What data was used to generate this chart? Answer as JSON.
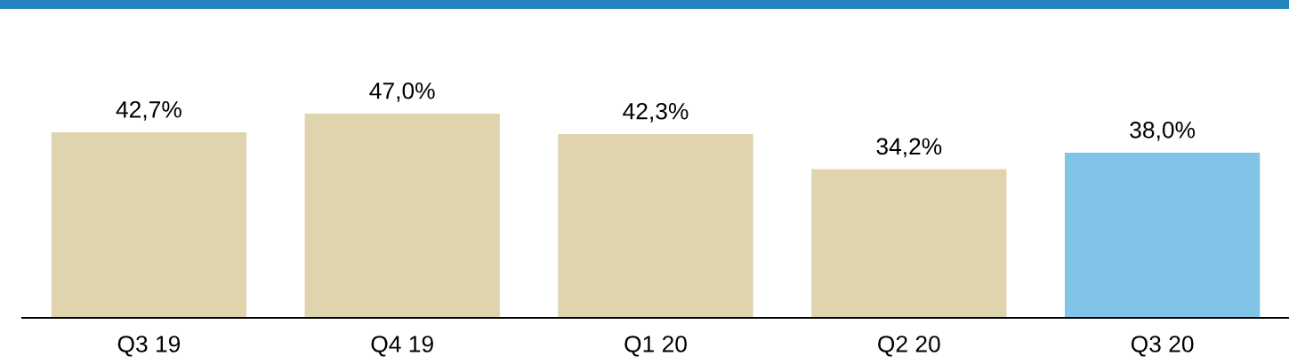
{
  "chart_data": {
    "type": "bar",
    "categories": [
      "Q3 19",
      "Q4 19",
      "Q1 20",
      "Q2 20",
      "Q3 20"
    ],
    "values": [
      42.7,
      47.0,
      42.3,
      34.2,
      38.0
    ],
    "value_labels": [
      "42,7%",
      "47,0%",
      "42,3%",
      "34,2%",
      "38,0%"
    ],
    "colors": [
      "#e0d4ae",
      "#e0d4ae",
      "#e0d4ae",
      "#e0d4ae",
      "#80c5e8"
    ],
    "grid": false,
    "legend": false
  }
}
